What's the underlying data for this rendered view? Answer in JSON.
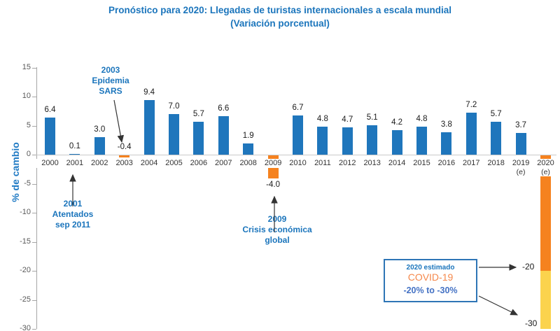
{
  "title": {
    "line1": "Pronóstico para 2020: Llegadas de turistas internacionales a escala mundial",
    "line2": "(Variación porcentual)"
  },
  "colors": {
    "bar_positive": "#1F76BC",
    "bar_negative": "#F5821F",
    "bar_2020_upper": "#F5821F",
    "bar_2020_lower": "#FBD34D",
    "accent_blue": "#1B75BC",
    "covid_orange": "#F5884B",
    "axis_gray": "#A6A6A6",
    "zero_line_gray": "#C9C9C9"
  },
  "y_axis": {
    "label": "% de cambio",
    "ticks": [
      "15",
      "10",
      "5",
      "0",
      "-5",
      "-10",
      "-15",
      "-20",
      "-25",
      "-30"
    ]
  },
  "x_labels": [
    {
      "line1": "2000"
    },
    {
      "line1": "2001"
    },
    {
      "line1": "2002"
    },
    {
      "line1": "2003"
    },
    {
      "line1": "2004"
    },
    {
      "line1": "2005"
    },
    {
      "line1": "2006"
    },
    {
      "line1": "2007"
    },
    {
      "line1": "2008"
    },
    {
      "line1": "2009"
    },
    {
      "line1": "2010"
    },
    {
      "line1": "2011"
    },
    {
      "line1": "2012"
    },
    {
      "line1": "2013"
    },
    {
      "line1": "2014"
    },
    {
      "line1": "2015"
    },
    {
      "line1": "2016"
    },
    {
      "line1": "2017"
    },
    {
      "line1": "2018"
    },
    {
      "line1": "2019",
      "line2": "(e)"
    },
    {
      "line1": "2020",
      "line2": "(e)"
    }
  ],
  "chart_data": {
    "type": "bar",
    "title": "Pronóstico para 2020: Llegadas de turistas internacionales a escala mundial",
    "subtitle": "(Variación porcentual)",
    "xlabel": "",
    "ylabel": "% de cambio",
    "ylim": [
      -30,
      15
    ],
    "grid": false,
    "legend": "none",
    "categories": [
      "2000",
      "2001",
      "2002",
      "2003",
      "2004",
      "2005",
      "2006",
      "2007",
      "2008",
      "2009",
      "2010",
      "2011",
      "2012",
      "2013",
      "2014",
      "2015",
      "2016",
      "2017",
      "2018",
      "2019 (e)",
      "2020 (e)"
    ],
    "values": [
      6.4,
      0.1,
      3.0,
      -0.4,
      9.4,
      7.0,
      5.7,
      6.6,
      1.9,
      -4.0,
      6.7,
      4.8,
      4.7,
      5.1,
      4.2,
      4.8,
      3.8,
      7.2,
      5.7,
      3.7,
      null
    ],
    "value_labels": [
      "6.4",
      "0.1",
      "3.0",
      "-0.4",
      "9.4",
      "7.0",
      "5.7",
      "6.6",
      "1.9",
      "-4.0",
      "6.7",
      "4.8",
      "4.7",
      "5.1",
      "4.2",
      "4.8",
      "3.8",
      "7.2",
      "5.7",
      "3.7",
      ""
    ],
    "bar_2020": {
      "estimate_range": "-20% to -30%",
      "segments": [
        {
          "from": 0,
          "to": -20,
          "color": "#F5821F",
          "end_label": "-20"
        },
        {
          "from": -20,
          "to": -30,
          "color": "#FBD34D",
          "end_label": "-30"
        }
      ]
    }
  },
  "annotations": {
    "sars": {
      "lines": [
        "2003",
        "Epidemia",
        "SARS"
      ]
    },
    "sep11": {
      "lines": [
        "2001",
        "Atentados",
        "sep 2011"
      ]
    },
    "crisis": {
      "lines": [
        "2009",
        "Crisis económica",
        "global"
      ]
    },
    "covid_box": {
      "line1": "2020 estimado",
      "line2": "COVID-19",
      "line3": "-20% to -30%"
    },
    "bar_labels": {
      "minus20": "-20",
      "minus30": "-30"
    }
  }
}
